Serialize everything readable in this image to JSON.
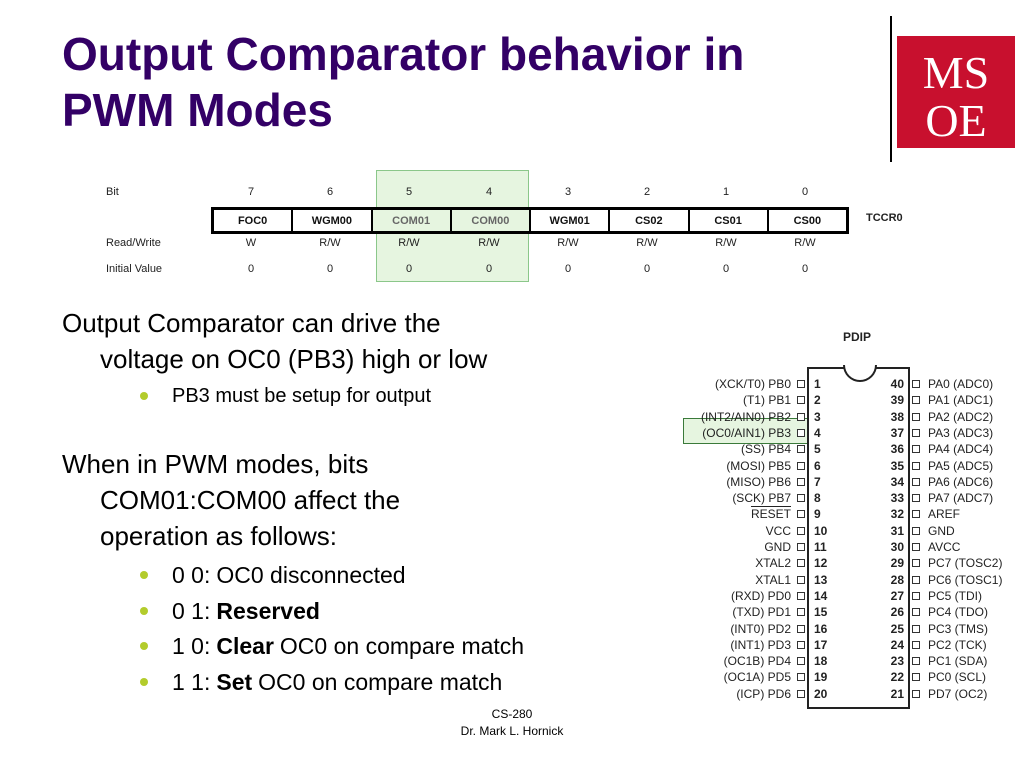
{
  "slide": {
    "title_line1": "Output Comparator behavior in",
    "title_line2": "PWM Modes",
    "logo_text_top": "MS",
    "logo_text_bottom": "OE"
  },
  "register": {
    "name": "TCCR0",
    "row_labels": {
      "bit": "Bit",
      "rw": "Read/Write",
      "init": "Initial Value"
    },
    "bits": [
      {
        "num": "7",
        "name": "FOC0",
        "rw": "W",
        "init": "0",
        "highlight": false
      },
      {
        "num": "6",
        "name": "WGM00",
        "rw": "R/W",
        "init": "0",
        "highlight": false
      },
      {
        "num": "5",
        "name": "COM01",
        "rw": "R/W",
        "init": "0",
        "highlight": true
      },
      {
        "num": "4",
        "name": "COM00",
        "rw": "R/W",
        "init": "0",
        "highlight": true
      },
      {
        "num": "3",
        "name": "WGM01",
        "rw": "R/W",
        "init": "0",
        "highlight": false
      },
      {
        "num": "2",
        "name": "CS02",
        "rw": "R/W",
        "init": "0",
        "highlight": false
      },
      {
        "num": "1",
        "name": "CS01",
        "rw": "R/W",
        "init": "0",
        "highlight": false
      },
      {
        "num": "0",
        "name": "CS00",
        "rw": "R/W",
        "init": "0",
        "highlight": false
      }
    ],
    "highlight_color": "#e6f5e0"
  },
  "bullets": {
    "b1_line1": "Output Comparator can drive the",
    "b1_line2": "voltage on OC0 (PB3) high or low",
    "b1_sub": "PB3 must be setup for output",
    "b2_line1": "When in PWM modes, bits",
    "b2_line2": "COM01:COM00 affect the",
    "b2_line3": "operation as follows:",
    "modes": [
      {
        "prefix": "0 0:",
        "bold": "",
        "rest": "OC0 disconnected"
      },
      {
        "prefix": "0 1:",
        "bold": "Reserved",
        "rest": ""
      },
      {
        "prefix": "1 0:",
        "bold": "Clear",
        "rest": "OC0 on compare match"
      },
      {
        "prefix": "1 1:",
        "bold": "Set",
        "rest": "OC0 on compare match"
      }
    ],
    "bullet_color": "#b3cc2c"
  },
  "chip": {
    "package": "PDIP",
    "left_pins": [
      {
        "label": "(XCK/T0)  PB0",
        "num": "1"
      },
      {
        "label": "(T1)  PB1",
        "num": "2"
      },
      {
        "label": "(INT2/AIN0)  PB2",
        "num": "3"
      },
      {
        "label": "(OC0/AIN1)  PB3",
        "num": "4"
      },
      {
        "label": "(SS)  PB4",
        "num": "5"
      },
      {
        "label": "(MOSI)  PB5",
        "num": "6"
      },
      {
        "label": "(MISO)  PB6",
        "num": "7"
      },
      {
        "label": "(SCK)  PB7",
        "num": "8"
      },
      {
        "label": "RESET",
        "num": "9"
      },
      {
        "label": "VCC",
        "num": "10"
      },
      {
        "label": "GND",
        "num": "11"
      },
      {
        "label": "XTAL2",
        "num": "12"
      },
      {
        "label": "XTAL1",
        "num": "13"
      },
      {
        "label": "(RXD)  PD0",
        "num": "14"
      },
      {
        "label": "(TXD)  PD1",
        "num": "15"
      },
      {
        "label": "(INT0)  PD2",
        "num": "16"
      },
      {
        "label": "(INT1)  PD3",
        "num": "17"
      },
      {
        "label": "(OC1B)  PD4",
        "num": "18"
      },
      {
        "label": "(OC1A)  PD5",
        "num": "19"
      },
      {
        "label": "(ICP)  PD6",
        "num": "20"
      }
    ],
    "right_pins": [
      {
        "label": "PA0  (ADC0)",
        "num": "40"
      },
      {
        "label": "PA1  (ADC1)",
        "num": "39"
      },
      {
        "label": "PA2  (ADC2)",
        "num": "38"
      },
      {
        "label": "PA3  (ADC3)",
        "num": "37"
      },
      {
        "label": "PA4  (ADC4)",
        "num": "36"
      },
      {
        "label": "PA5  (ADC5)",
        "num": "35"
      },
      {
        "label": "PA6  (ADC6)",
        "num": "34"
      },
      {
        "label": "PA7  (ADC7)",
        "num": "33"
      },
      {
        "label": "AREF",
        "num": "32"
      },
      {
        "label": "GND",
        "num": "31"
      },
      {
        "label": "AVCC",
        "num": "30"
      },
      {
        "label": "PC7  (TOSC2)",
        "num": "29"
      },
      {
        "label": "PC6  (TOSC1)",
        "num": "28"
      },
      {
        "label": "PC5  (TDI)",
        "num": "27"
      },
      {
        "label": "PC4  (TDO)",
        "num": "26"
      },
      {
        "label": "PC3  (TMS)",
        "num": "25"
      },
      {
        "label": "PC2  (TCK)",
        "num": "24"
      },
      {
        "label": "PC1  (SDA)",
        "num": "23"
      },
      {
        "label": "PC0  (SCL)",
        "num": "22"
      },
      {
        "label": "PD7  (OC2)",
        "num": "21"
      }
    ]
  },
  "footer": {
    "course": "CS-280",
    "author": "Dr. Mark L. Hornick"
  }
}
